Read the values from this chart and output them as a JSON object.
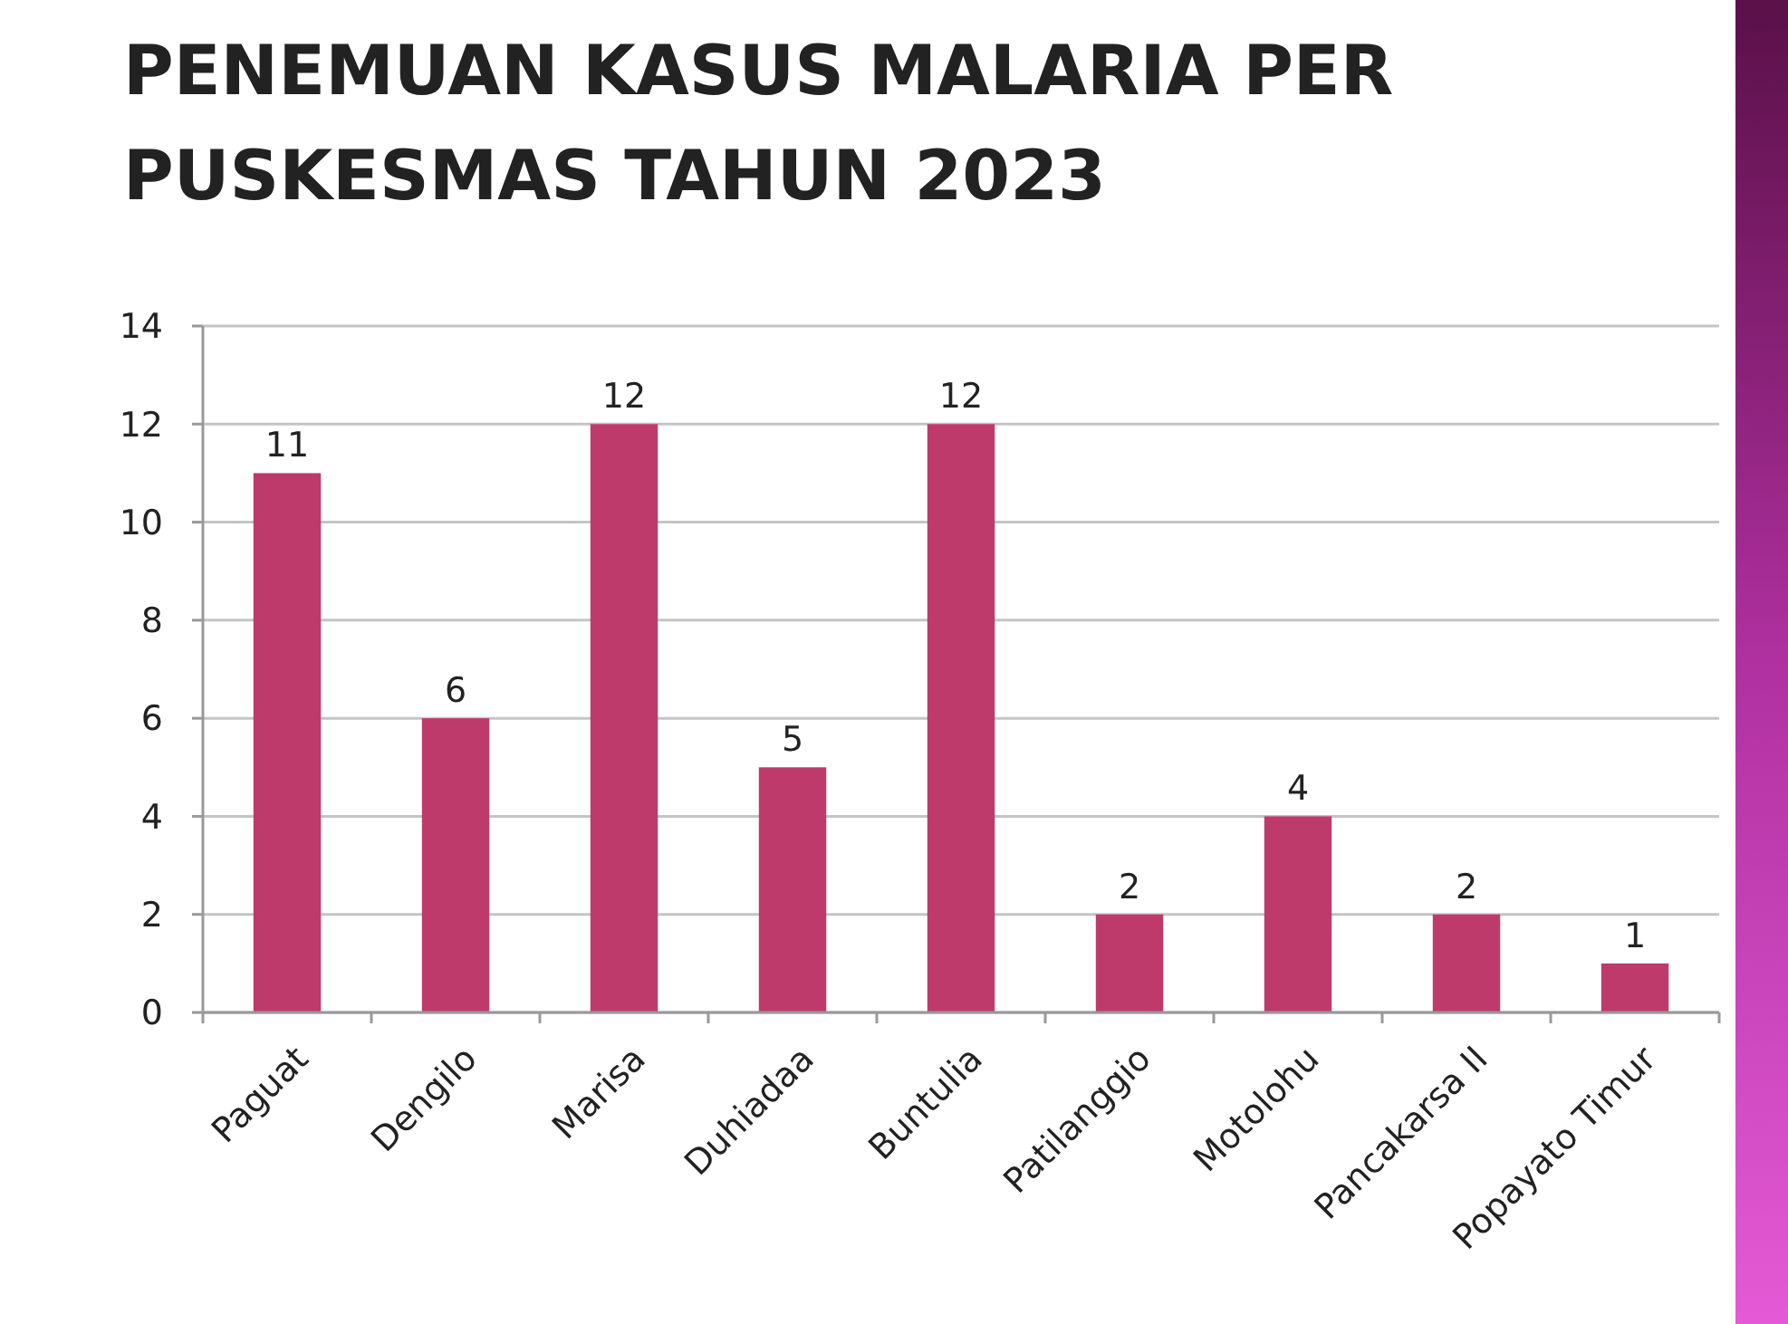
{
  "chart_data": {
    "type": "bar",
    "title": "PENEMUAN KASUS MALARIA PER PUSKESMAS TAHUN 2023",
    "categories": [
      "Paguat",
      "Dengilo",
      "Marisa",
      "Duhiadaa",
      "Buntulia",
      "Patilanggio",
      "Motolohu",
      "Pancakarsa II",
      "Popayato Timur"
    ],
    "values": [
      11,
      6,
      12,
      5,
      12,
      2,
      4,
      2,
      1
    ],
    "color": "#be3a6b",
    "ylim": [
      0,
      14
    ],
    "yticks": [
      0,
      2,
      4,
      6,
      8,
      10,
      12,
      14
    ],
    "grid": "y",
    "data_labels": true
  }
}
